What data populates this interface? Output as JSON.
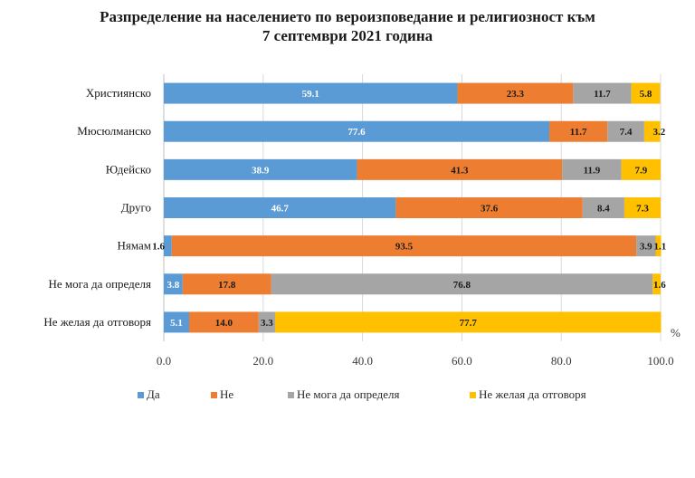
{
  "chart_data": {
    "type": "bar",
    "orientation": "horizontal",
    "stacked": true,
    "title_line1": "Разпределение на населението по вероизповедание и религиозност към",
    "title_line2": "7 септември 2021 година",
    "categories": [
      "Християнско",
      "Мюсюлманско",
      "Юдейско",
      "Друго",
      "Нямам",
      "Не мога да определя",
      "Не желая да отговоря"
    ],
    "series": [
      {
        "name": "Да",
        "color": "#5B9BD5",
        "values": [
          59.1,
          77.6,
          38.9,
          46.7,
          1.6,
          3.8,
          5.1
        ]
      },
      {
        "name": "Не",
        "color": "#ED7D31",
        "values": [
          23.3,
          11.7,
          41.3,
          37.6,
          93.5,
          17.8,
          14.0
        ]
      },
      {
        "name": "Не мога да определя",
        "color": "#A5A5A5",
        "values": [
          11.7,
          7.4,
          11.9,
          8.4,
          3.9,
          76.8,
          3.3
        ]
      },
      {
        "name": "Не желая да отговоря",
        "color": "#FFC000",
        "values": [
          5.8,
          3.2,
          7.9,
          7.3,
          1.1,
          1.6,
          77.7
        ]
      }
    ],
    "xlim": [
      0,
      100
    ],
    "xticks": [
      "0.0",
      "20.0",
      "40.0",
      "60.0",
      "80.0",
      "100.0"
    ],
    "xunit": "%",
    "grid": true,
    "legend_position": "bottom"
  }
}
